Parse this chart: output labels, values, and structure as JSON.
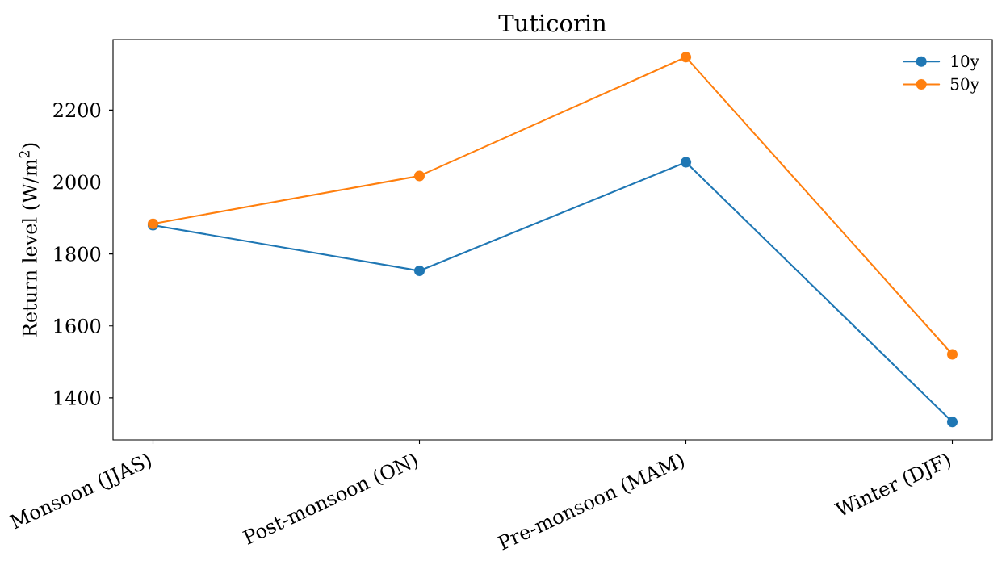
{
  "chart_data": {
    "type": "line",
    "title": "Tuticorin",
    "ylabel": "Return level (W/m$^{2}$)",
    "categories": [
      "Monsoon (JJAS)",
      "Post-monsoon (ON)",
      "Pre-monsoon (MAM)",
      "Winter (DJF)"
    ],
    "series": [
      {
        "name": "10y",
        "color": "#1f77b4",
        "values": [
          1880,
          1753,
          2055,
          1333
        ]
      },
      {
        "name": "50y",
        "color": "#ff7f0e",
        "values": [
          1884,
          2017,
          2347,
          1521
        ]
      }
    ],
    "ylim": [
      1283,
      2396
    ],
    "yticks": [
      1400,
      1600,
      1800,
      2000,
      2200
    ],
    "legend": "top right",
    "marker": "circle",
    "line_style": "solid"
  }
}
